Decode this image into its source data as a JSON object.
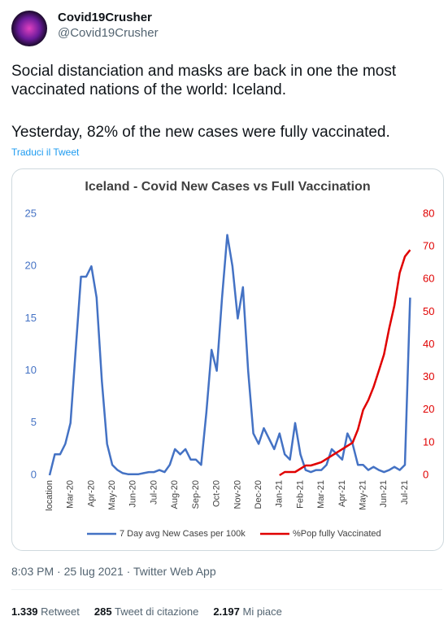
{
  "tweet": {
    "name": "Covid19Crusher",
    "handle": "@Covid19Crusher",
    "paragraphs": [
      "Social distanciation and masks are back in one the most vaccinated nations of the world: Iceland.",
      "Yesterday, 82% of the new cases were fully vaccinated."
    ],
    "translate": "Traduci il Tweet",
    "meta": "8:03 PM · 25 lug 2021 · Twitter Web App",
    "stats": [
      {
        "count": "1.339",
        "label": "Retweet"
      },
      {
        "count": "285",
        "label": "Tweet di citazione"
      },
      {
        "count": "2.197",
        "label": "Mi piace"
      }
    ]
  },
  "chart_data": {
    "type": "line",
    "title": "Iceland - Covid New Cases vs Full Vaccination",
    "categories": [
      "location",
      null,
      null,
      null,
      "Mar-20",
      null,
      null,
      null,
      "Apr-20",
      null,
      null,
      null,
      "May-20",
      null,
      null,
      null,
      "Jun-20",
      null,
      null,
      null,
      "Jul-20",
      null,
      null,
      null,
      "Aug-20",
      null,
      null,
      null,
      "Sep-20",
      null,
      null,
      null,
      "Oct-20",
      null,
      null,
      null,
      "Nov-20",
      null,
      null,
      null,
      "Dec-20",
      null,
      null,
      null,
      "Jan-21",
      null,
      null,
      null,
      "Feb-21",
      null,
      null,
      null,
      "Mar-21",
      null,
      null,
      null,
      "Apr-21",
      null,
      null,
      null,
      "May-21",
      null,
      null,
      null,
      "Jun-21",
      null,
      null,
      null,
      "Jul-21",
      null
    ],
    "series": [
      {
        "name": "7 Day avg New Cases per 100k",
        "color": "#4472c4",
        "values": [
          0,
          2,
          2,
          3,
          5,
          12,
          19,
          19,
          20,
          17,
          9,
          3,
          1,
          0.5,
          0.2,
          0.1,
          0.1,
          0.1,
          0.2,
          0.3,
          0.3,
          0.5,
          0.3,
          1,
          2.5,
          2,
          2.5,
          1.5,
          1.5,
          1,
          6,
          12,
          10,
          17,
          23,
          20,
          15,
          18,
          10,
          4,
          3,
          4.5,
          3.5,
          2.5,
          4,
          2,
          1.5,
          5,
          2,
          0.5,
          0.3,
          0.5,
          0.5,
          1,
          2.5,
          2,
          1.5,
          4,
          3,
          1,
          1,
          0.5,
          0.8,
          0.5,
          0.3,
          0.5,
          0.8,
          0.5,
          1,
          17
        ]
      },
      {
        "name": "%Pop fully Vaccinated",
        "color": "#e00000",
        "axis": "y2",
        "values": [
          null,
          null,
          null,
          null,
          null,
          null,
          null,
          null,
          null,
          null,
          null,
          null,
          null,
          null,
          null,
          null,
          null,
          null,
          null,
          null,
          null,
          null,
          null,
          null,
          null,
          null,
          null,
          null,
          null,
          null,
          null,
          null,
          null,
          null,
          null,
          null,
          null,
          null,
          null,
          null,
          null,
          null,
          null,
          null,
          0,
          1,
          1,
          1,
          2,
          3,
          3,
          3.5,
          4,
          5,
          6,
          7,
          8,
          9,
          10,
          14,
          20,
          23,
          27,
          32,
          37,
          45,
          52,
          62,
          67,
          69
        ]
      }
    ],
    "ylim": [
      0,
      25
    ],
    "yticks": [
      0,
      5,
      10,
      15,
      20,
      25
    ],
    "y2lim": [
      0,
      80
    ],
    "y2ticks": [
      0,
      10,
      20,
      30,
      40,
      50,
      60,
      70,
      80
    ],
    "legend": "bottom"
  }
}
